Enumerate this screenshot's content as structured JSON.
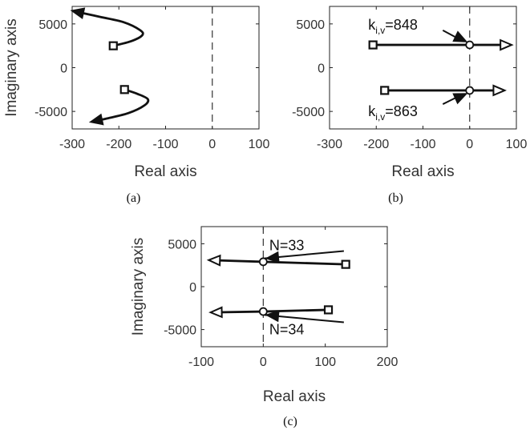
{
  "chart_data": [
    {
      "id": "a",
      "type": "line",
      "caption": "(a)",
      "xlabel": "Real axis",
      "ylabel": "Imaginary axis",
      "xlim": [
        -300,
        100
      ],
      "ylim": [
        -7000,
        7000
      ],
      "xticks": [
        -300,
        -200,
        -100,
        0,
        100
      ],
      "yticks": [
        -5000,
        0,
        5000
      ],
      "ref_line_x": 0,
      "series": [
        {
          "points": [
            [
              -212,
              2500
            ],
            [
              -175,
              3000
            ],
            [
              -150,
              3700
            ],
            [
              -155,
              4300
            ],
            [
              -190,
              5200
            ],
            [
              -240,
              5800
            ],
            [
              -300,
              6500
            ]
          ],
          "start_marker": "square",
          "end_marker": "arrow"
        },
        {
          "points": [
            [
              -188,
              -2500
            ],
            [
              -160,
              -3000
            ],
            [
              -138,
              -3600
            ],
            [
              -145,
              -4300
            ],
            [
              -180,
              -5200
            ],
            [
              -225,
              -5800
            ],
            [
              -260,
              -6200
            ]
          ],
          "start_marker": "square",
          "end_marker": "arrow"
        }
      ],
      "annotations": []
    },
    {
      "id": "b",
      "type": "line",
      "caption": "(b)",
      "xlabel": "Real axis",
      "ylabel": "",
      "xlim": [
        -300,
        100
      ],
      "ylim": [
        -7000,
        7000
      ],
      "xticks": [
        -300,
        -200,
        -100,
        0,
        100
      ],
      "yticks": [
        -5000,
        0,
        5000
      ],
      "ref_line_x": 0,
      "series": [
        {
          "points": [
            [
              -207,
              2600
            ],
            [
              0,
              2600
            ],
            [
              90,
              2600
            ]
          ],
          "start_marker": "square",
          "end_marker": "triangle",
          "circle_at": [
            0,
            2600
          ]
        },
        {
          "points": [
            [
              -182,
              -2600
            ],
            [
              0,
              -2600
            ],
            [
              75,
              -2600
            ]
          ],
          "start_marker": "square",
          "end_marker": "triangle",
          "circle_at": [
            0,
            -2600
          ]
        }
      ],
      "annotations": [
        {
          "text": "k",
          "sub": "i,v",
          "suffix": "=848",
          "target": [
            -8,
            3000
          ],
          "anchor": [
            -157,
            5000
          ]
        },
        {
          "text": "k",
          "sub": "i,v",
          "suffix": "=863",
          "target": [
            -8,
            -3000
          ],
          "anchor": [
            -157,
            -4900
          ]
        }
      ]
    },
    {
      "id": "c",
      "type": "line",
      "caption": "(c)",
      "xlabel": "Real axis",
      "ylabel": "Imaginary axis",
      "xlim": [
        -100,
        200
      ],
      "ylim": [
        -7000,
        7000
      ],
      "xticks": [
        -100,
        0,
        100,
        200
      ],
      "yticks": [
        -5000,
        0,
        5000
      ],
      "ref_line_x": 0,
      "series": [
        {
          "points": [
            [
              133,
              2600
            ],
            [
              0,
              2900
            ],
            [
              -88,
              3100
            ]
          ],
          "start_marker": "square",
          "end_marker": "triangle",
          "circle_at": [
            0,
            2900
          ]
        },
        {
          "points": [
            [
              105,
              -2700
            ],
            [
              0,
              -2900
            ],
            [
              -85,
              -3000
            ]
          ],
          "start_marker": "square",
          "end_marker": "triangle",
          "circle_at": [
            0,
            -2900
          ]
        }
      ],
      "annotations": [
        {
          "text": "N=33",
          "sub": "",
          "suffix": "",
          "target": [
            6,
            3300
          ],
          "anchor": [
            55,
            4900
          ]
        },
        {
          "text": "N=34",
          "sub": "",
          "suffix": "",
          "target": [
            6,
            -3300
          ],
          "anchor": [
            55,
            -4900
          ]
        }
      ]
    }
  ]
}
